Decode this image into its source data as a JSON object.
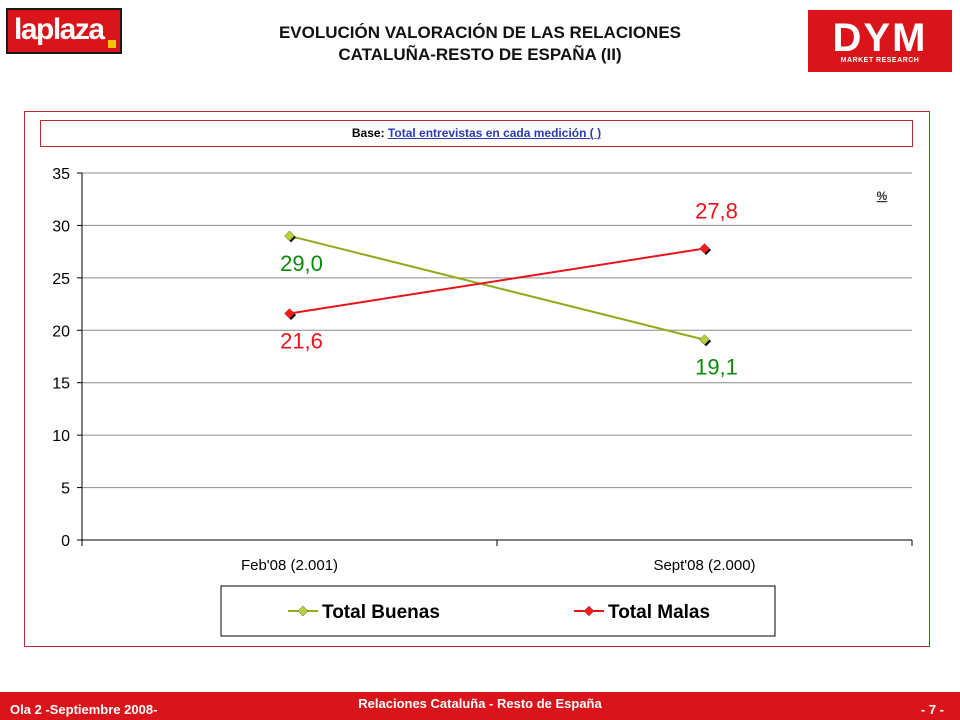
{
  "header": {
    "logo_left": "laplaza",
    "title_line1": "EVOLUCIÓN VALORACIÓN DE LAS RELACIONES",
    "title_line2": "CATALUÑA-RESTO DE ESPAÑA (II)",
    "logo_right": "DYM",
    "logo_right_sub": "MARKET RESEARCH"
  },
  "base": {
    "label": "Base:",
    "value": "Total entrevistas en cada medición ( )"
  },
  "chart_data": {
    "type": "line",
    "categories": [
      "Feb'08 (2.001)",
      "Sept'08 (2.000)"
    ],
    "series": [
      {
        "name": "Total Buenas",
        "values": [
          29.0,
          19.1
        ],
        "labels": [
          "29,0",
          "19,1"
        ],
        "color": "#8fae1b",
        "marker_color": "#b5d336",
        "label_color": "#0a8a0a"
      },
      {
        "name": "Total Malas",
        "values": [
          21.6,
          27.8
        ],
        "labels": [
          "21,6",
          "27,8"
        ],
        "color": "#e8141a",
        "marker_color": "#ff1a1a",
        "label_color": "#e8141a"
      }
    ],
    "ylim": [
      0,
      35
    ],
    "yticks": [
      "0",
      "5",
      "10",
      "15",
      "20",
      "25",
      "30",
      "35"
    ],
    "unit": "%",
    "grid": true,
    "legend": "bottom"
  },
  "footer": {
    "left": "Ola 2 -Septiembre 2008-",
    "center": "Relaciones Cataluña - Resto de España",
    "right": "- 7 -"
  }
}
